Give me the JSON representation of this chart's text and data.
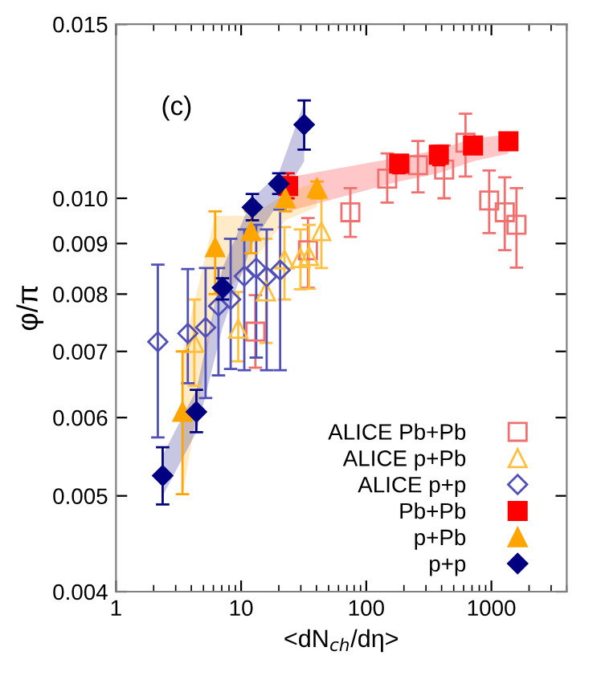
{
  "chart_data": {
    "type": "scatter",
    "xlabel": "<dN$_{ch}$/dη>",
    "ylabel": "φ/π",
    "log": "xy",
    "grid": false,
    "legend": "bottom right",
    "xlim": [
      1,
      4000
    ],
    "xticks": [
      1,
      10,
      100,
      1000
    ],
    "ylim": [
      0.004,
      0.015
    ],
    "yticks": [
      0.004,
      0.005,
      0.006,
      0.007,
      0.008,
      0.009,
      {
        "value": 0.01,
        "label": "0.010"
      },
      0.015
    ],
    "annotations": [
      "(c)"
    ],
    "series": [
      {
        "name": "ALICE Pb+Pb",
        "color": "#f07070",
        "marker": "square",
        "x": [
          13.0,
          34.2,
          74.6,
          147,
          259,
          419,
          621,
          960,
          1279,
          1586
        ],
        "values": [
          0.00733,
          0.00886,
          0.00968,
          0.01047,
          0.0108,
          0.01069,
          0.01138,
          0.00995,
          0.00968,
          0.0094
        ],
        "errors": [
          [
            0.00674,
            0.00798
          ],
          [
            0.00812,
            0.00955
          ],
          [
            0.00914,
            0.01024
          ],
          [
            0.0099,
            0.0111
          ],
          [
            0.01014,
            0.01143
          ],
          [
            0.01,
            0.01131
          ],
          [
            0.01052,
            0.01218
          ],
          [
            0.00922,
            0.01067
          ],
          [
            0.00886,
            0.0105
          ],
          [
            0.00851,
            0.01024
          ]
        ]
      },
      {
        "name": "ALICE p+Pb",
        "color": "#ffc040",
        "marker": "triangle",
        "x": [
          4.23,
          9.48,
          15.8,
          22.2,
          29.8,
          34.9,
          43.8
        ],
        "values": [
          0.00714,
          0.00738,
          0.00805,
          0.00867,
          0.0087,
          0.00874,
          0.00926
        ],
        "errors": [
          [
            0.00646,
            0.0079
          ],
          [
            0.00684,
            0.00804
          ],
          [
            0.00714,
            0.0091
          ],
          [
            0.0079,
            0.00935
          ],
          [
            0.00809,
            0.0093
          ],
          [
            0.0081,
            0.0094
          ],
          [
            0.0085,
            0.01
          ]
        ]
      },
      {
        "name": "ALICE p+p",
        "color": "#5050b8",
        "marker": "diamond",
        "x": [
          2.16,
          3.75,
          5.2,
          6.59,
          8.25,
          10.6,
          13.2,
          16.0,
          20.5
        ],
        "values": [
          0.00716,
          0.0073,
          0.0074,
          0.00778,
          0.0079,
          0.00834,
          0.0085,
          0.00833,
          0.00846
        ],
        "errors": [
          [
            0.00573,
            0.00857
          ],
          [
            0.0065,
            0.00848
          ],
          [
            0.00628,
            0.0085
          ],
          [
            0.00662,
            0.0085
          ],
          [
            0.00672,
            0.0091
          ],
          [
            0.0067,
            0.0093
          ],
          [
            0.0069,
            0.0094
          ],
          [
            0.0067,
            0.0093
          ],
          [
            0.0067,
            0.00974
          ]
        ]
      },
      {
        "name": "Pb+Pb",
        "color": "#ff0000",
        "marker": "square",
        "x": [
          23.7,
          183,
          380,
          713,
          1368
        ],
        "values": [
          0.01029,
          0.01084,
          0.01107,
          0.01131,
          0.01142
        ],
        "errors": [
          [
            0.01,
            0.0106
          ],
          [
            0.0106,
            0.011
          ],
          [
            0.0108,
            0.0113
          ],
          [
            0.0111,
            0.0115
          ],
          [
            0.0112,
            0.0116
          ]
        ],
        "lower": [
          0.0097,
          0.0104,
          0.0106,
          0.0109,
          0.0111
        ],
        "upper": [
          0.0105,
          0.011,
          0.0112,
          0.0115,
          0.0116
        ]
      },
      {
        "name": "p+Pb",
        "color": "#ffa500",
        "marker": "triangle",
        "x": [
          3.4,
          6.2,
          12.0,
          22.6,
          40.4
        ],
        "values": [
          0.00608,
          0.00892,
          0.00926,
          0.01,
          0.01024
        ],
        "errors": [
          [
            0.00502,
            0.007
          ],
          [
            0.008,
            0.0097
          ],
          [
            0.0088,
            0.0097
          ],
          [
            0.0097,
            0.0103
          ],
          [
            0.01,
            0.0104
          ]
        ],
        "lower": [
          0.005,
          0.0078,
          0.0086,
          0.0095,
          0.0098
        ],
        "upper": [
          0.007,
          0.0096,
          0.0096,
          0.0101,
          0.0104
        ]
      },
      {
        "name": "p+p",
        "color": "#000080",
        "marker": "diamond",
        "x": [
          2.36,
          4.39,
          7.1,
          12.3,
          20,
          31.9
        ],
        "values": [
          0.00524,
          0.00608,
          0.00812,
          0.00979,
          0.01034,
          0.01187
        ],
        "errors": [
          [
            0.0049,
            0.0056
          ],
          [
            0.0058,
            0.0064
          ],
          [
            0.0079,
            0.0083
          ],
          [
            0.0095,
            0.0101
          ],
          [
            0.0101,
            0.0106
          ],
          [
            0.0112,
            0.01256
          ]
        ],
        "lower": [
          0.005,
          0.0058,
          0.0074,
          0.009,
          0.0099,
          0.0109
        ],
        "upper": [
          0.0055,
          0.0064,
          0.0085,
          0.01,
          0.0106,
          0.0125
        ]
      }
    ]
  }
}
